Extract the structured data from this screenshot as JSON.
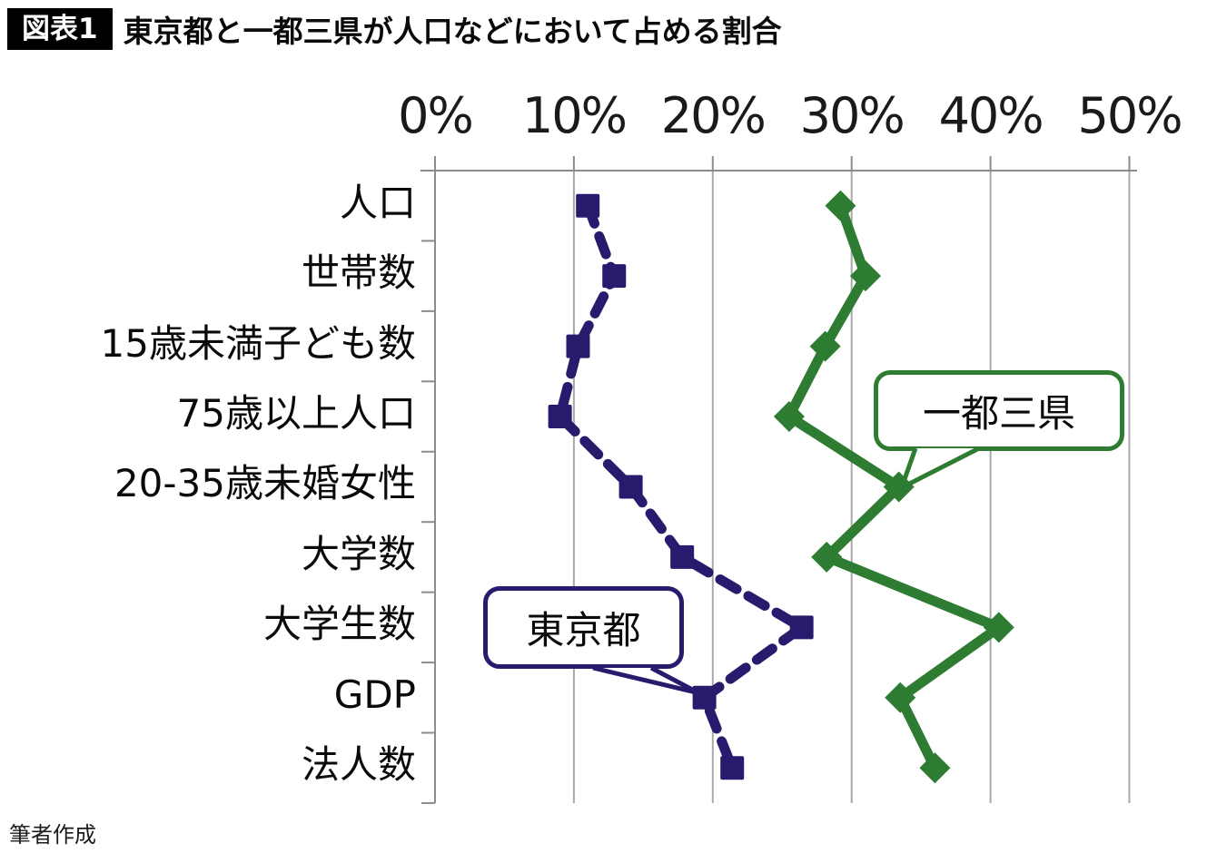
{
  "header": {
    "badge": "図表1",
    "title": "東京都と一都三県が人口などにおいて占める割合"
  },
  "footer": {
    "credit": "筆者作成"
  },
  "chart_data": {
    "type": "line",
    "orientation": "horizontal",
    "title": "東京都と一都三県が人口などにおいて占める割合",
    "categories": [
      "人口",
      "世帯数",
      "15歳未満子ども数",
      "75歳以上人口",
      "20-35歳未婚女性",
      "大学数",
      "大学生数",
      "GDP",
      "法人数"
    ],
    "x_ticks": [
      "0%",
      "10%",
      "20%",
      "30%",
      "40%",
      "50%"
    ],
    "x_tick_values": [
      0,
      10,
      20,
      30,
      40,
      50
    ],
    "xlim": [
      0,
      50
    ],
    "grid": true,
    "grid_color": "#a8a8a8",
    "axis_color": "#8c8c8c",
    "series": [
      {
        "name": "東京都",
        "color": "#2a1a6e",
        "line_style": "dashed",
        "marker": "square",
        "values": [
          11.0,
          12.9,
          10.3,
          9.0,
          14.1,
          17.8,
          26.4,
          19.4,
          21.4
        ]
      },
      {
        "name": "一都三県",
        "color": "#2e7c31",
        "line_style": "solid",
        "marker": "diamond",
        "values": [
          29.2,
          31.0,
          28.1,
          25.5,
          33.4,
          28.2,
          40.6,
          33.5,
          36.0
        ]
      }
    ],
    "annotations": [
      {
        "label": "東京都",
        "series": "東京都",
        "category": "GDP"
      },
      {
        "label": "一都三県",
        "series": "一都三県",
        "category": "20-35歳未婚女性"
      }
    ]
  }
}
